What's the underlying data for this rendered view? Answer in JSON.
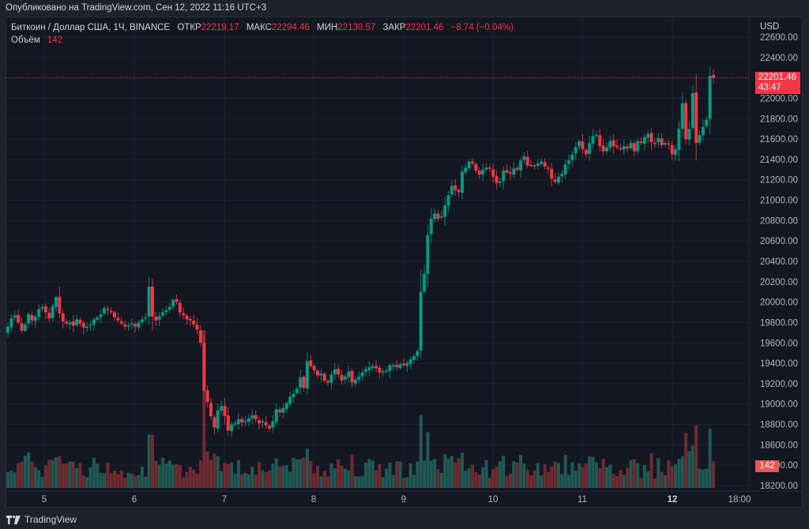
{
  "header": {
    "published": "Опубликовано на TradingView.com, Сен 12, 2022 11:16 UTC+3"
  },
  "legend": {
    "symbol": "Биткоин / Доллар США, 1Ч, BINANCE",
    "open_label": "ОТКР",
    "open": "22219.17",
    "high_label": "МАКС",
    "high": "22294.46",
    "low_label": "МИН",
    "low": "22130.57",
    "close_label": "ЗАКР",
    "close": "22201.46",
    "change": "−8.74 (−0.04%)",
    "volume_label": "Объём",
    "volume": "142"
  },
  "price_axis": {
    "currency": "USD",
    "last_price": "22201.46",
    "countdown": "43:47",
    "volume_badge": "142"
  },
  "footer": {
    "brand": "TradingView"
  },
  "colors": {
    "up": "#089981",
    "down": "#f23645",
    "up_volume": "#22615a",
    "down_volume": "#7a2e33",
    "background": "#131722",
    "grid": "#1f2330"
  },
  "chart_data": {
    "type": "candlestick",
    "title": "Биткоин / Доллар США, 1Ч, BINANCE",
    "xlabel": "",
    "ylabel": "USD",
    "ylim": [
      18150,
      22650
    ],
    "y_ticks": [
      22600,
      22400,
      22200,
      22000,
      21800,
      21600,
      21400,
      21200,
      21000,
      20800,
      20600,
      20400,
      20200,
      20000,
      19800,
      19600,
      19400,
      19200,
      19000,
      18800,
      18600,
      18400,
      18200
    ],
    "x_ticks": [
      "5",
      "6",
      "7",
      "8",
      "9",
      "10",
      "11",
      "12",
      "18:00"
    ],
    "grid": true,
    "last_price": 22201.46,
    "closes": [
      19760,
      19840,
      19870,
      19800,
      19720,
      19780,
      19880,
      19820,
      19860,
      19930,
      19950,
      19900,
      19840,
      19960,
      20050,
      19890,
      19810,
      19790,
      19800,
      19770,
      19830,
      19790,
      19750,
      19760,
      19780,
      19830,
      19850,
      19880,
      19940,
      19920,
      19900,
      19850,
      19820,
      19790,
      19760,
      19770,
      19790,
      19760,
      19800,
      19830,
      19850,
      20150,
      19860,
      19820,
      19860,
      19900,
      19920,
      19950,
      20020,
      20000,
      19900,
      19870,
      19830,
      19820,
      19780,
      19730,
      19600,
      19130,
      19020,
      18880,
      18770,
      18940,
      18980,
      18880,
      18740,
      18800,
      18810,
      18850,
      18820,
      18830,
      18860,
      18890,
      18850,
      18810,
      18830,
      18790,
      18760,
      18830,
      18950,
      18920,
      18960,
      19010,
      19070,
      19100,
      19150,
      19260,
      19160,
      19420,
      19370,
      19330,
      19280,
      19300,
      19230,
      19210,
      19290,
      19340,
      19290,
      19230,
      19270,
      19320,
      19210,
      19240,
      19270,
      19310,
      19340,
      19360,
      19370,
      19350,
      19310,
      19320,
      19330,
      19380,
      19380,
      19360,
      19390,
      19380,
      19400,
      19440,
      19470,
      19520,
      20100,
      20280,
      20660,
      20820,
      20870,
      20820,
      20840,
      20950,
      21050,
      21140,
      21100,
      21080,
      21280,
      21320,
      21380,
      21360,
      21290,
      21250,
      21300,
      21320,
      21310,
      21230,
      21170,
      21180,
      21290,
      21270,
      21260,
      21310,
      21300,
      21390,
      21430,
      21340,
      21340,
      21330,
      21360,
      21380,
      21330,
      21310,
      21210,
      21180,
      21230,
      21260,
      21350,
      21390,
      21450,
      21520,
      21580,
      21500,
      21450,
      21560,
      21630,
      21640,
      21530,
      21480,
      21520,
      21580,
      21530,
      21520,
      21500,
      21530,
      21510,
      21560,
      21480,
      21580,
      21560,
      21620,
      21650,
      21570,
      21560,
      21610,
      21540,
      21560,
      21550,
      21450,
      21500,
      21700,
      21950,
      21600,
      21700,
      22050,
      21560,
      21640,
      21720,
      21790,
      22220,
      22201
    ],
    "volumes_note": "Hourly volume bars drawn at bottom of chart, colored by candle direction"
  }
}
